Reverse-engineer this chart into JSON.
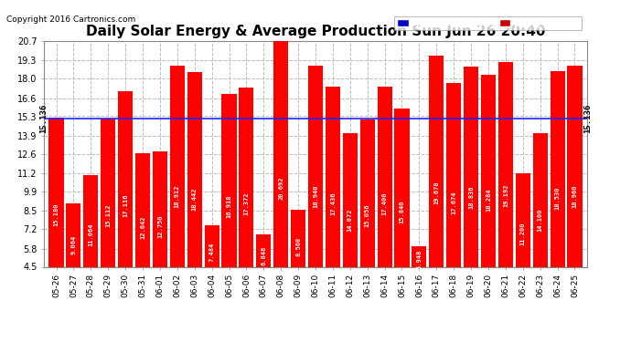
{
  "title": "Daily Solar Energy & Average Production Sun Jun 26 20:40",
  "copyright": "Copyright 2016 Cartronics.com",
  "categories": [
    "05-26",
    "05-27",
    "05-28",
    "05-29",
    "05-30",
    "05-31",
    "06-01",
    "06-02",
    "06-03",
    "06-04",
    "06-05",
    "06-06",
    "06-07",
    "06-08",
    "06-09",
    "06-10",
    "06-11",
    "06-12",
    "06-13",
    "06-14",
    "06-15",
    "06-16",
    "06-17",
    "06-18",
    "06-19",
    "06-20",
    "06-21",
    "06-22",
    "06-23",
    "06-24",
    "06-25"
  ],
  "values": [
    15.18,
    9.064,
    11.064,
    15.112,
    17.116,
    12.642,
    12.75,
    18.912,
    18.442,
    7.484,
    16.918,
    17.372,
    6.848,
    20.692,
    8.56,
    18.94,
    17.436,
    14.072,
    15.056,
    17.4,
    15.84,
    5.948,
    19.678,
    17.674,
    18.836,
    18.284,
    19.192,
    11.2,
    14.1,
    18.53,
    18.96
  ],
  "average": 15.136,
  "ylim_min": 4.5,
  "ylim_max": 20.7,
  "yticks": [
    4.5,
    5.8,
    7.2,
    8.5,
    9.9,
    11.2,
    12.6,
    13.9,
    15.3,
    16.6,
    18.0,
    19.3,
    20.7
  ],
  "bar_color": "#ff0000",
  "avg_line_color": "#2222ff",
  "background_color": "#ffffff",
  "plot_bg_color": "#ffffff",
  "grid_color": "#bbbbbb",
  "avg_label_bg": "#0000cc",
  "daily_label_bg": "#cc0000",
  "avg_value": "15.136",
  "title_fontsize": 11,
  "copyright_fontsize": 6.5,
  "bar_label_fontsize": 5.0,
  "tick_fontsize": 7,
  "legend_fontsize": 7.5
}
